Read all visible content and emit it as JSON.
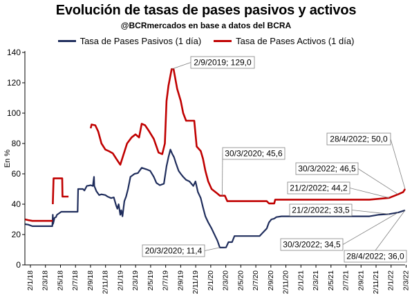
{
  "chart_data": {
    "type": "line",
    "title": "Evolución de tasas de pases pasivos y activos",
    "subtitle": "@BCRmercados en base a datos del BCRA",
    "ylabel": "En %",
    "ylim": [
      0,
      140
    ],
    "yticks": [
      0,
      20,
      40,
      60,
      80,
      100,
      120,
      140
    ],
    "xlim": [
      "2018-01-01",
      "2022-04-28"
    ],
    "xticks": [
      "2/1/18",
      "2/3/18",
      "2/5/18",
      "2/7/18",
      "2/9/18",
      "2/11/18",
      "2/1/19",
      "2/3/19",
      "2/5/19",
      "2/7/19",
      "2/9/19",
      "2/11/19",
      "2/1/20",
      "2/3/20",
      "2/5/20",
      "2/7/20",
      "2/9/20",
      "2/11/20",
      "2/1/21",
      "2/3/21",
      "2/5/21",
      "2/7/21",
      "2/9/21",
      "2/11/21",
      "2/1/22",
      "2/3/22"
    ],
    "grid": false,
    "legend": "top",
    "series": [
      {
        "name": "Tasa de Pases Pasivos (1 día)",
        "color": "#1f2d5c",
        "points": [
          [
            "2018-01-02",
            26.8
          ],
          [
            "2018-01-15",
            26.5
          ],
          [
            "2018-02-01",
            25.5
          ],
          [
            "2018-03-01",
            25.5
          ],
          [
            "2018-04-01",
            25.5
          ],
          [
            "2018-04-25",
            25.5
          ],
          [
            "2018-04-27",
            33.0
          ],
          [
            "2018-04-28",
            27.0
          ],
          [
            "2018-05-04",
            31.0
          ],
          [
            "2018-05-10",
            31.5
          ],
          [
            "2018-05-14",
            33.0
          ],
          [
            "2018-06-01",
            35.0
          ],
          [
            "2018-06-20",
            35.0
          ],
          [
            "2018-07-15",
            35.0
          ],
          [
            "2018-08-08",
            35.0
          ],
          [
            "2018-08-10",
            50.0
          ],
          [
            "2018-08-30",
            50.0
          ],
          [
            "2018-09-05",
            49.0
          ],
          [
            "2018-09-15",
            52.0
          ],
          [
            "2018-10-01",
            52.5
          ],
          [
            "2018-10-10",
            52.0
          ],
          [
            "2018-10-15",
            58.0
          ],
          [
            "2018-10-16",
            52.0
          ],
          [
            "2018-10-25",
            48.5
          ],
          [
            "2018-11-05",
            46.0
          ],
          [
            "2018-11-15",
            46.5
          ],
          [
            "2018-12-01",
            46.0
          ],
          [
            "2018-12-10",
            45.0
          ],
          [
            "2018-12-25",
            44.0
          ],
          [
            "2019-01-05",
            44.5
          ],
          [
            "2019-01-15",
            39.0
          ],
          [
            "2019-01-20",
            37.0
          ],
          [
            "2019-01-25",
            40.0
          ],
          [
            "2019-02-01",
            33.0
          ],
          [
            "2019-02-05",
            36.0
          ],
          [
            "2019-02-10",
            32.0
          ],
          [
            "2019-02-18",
            42.0
          ],
          [
            "2019-02-25",
            45.0
          ],
          [
            "2019-03-05",
            50.0
          ],
          [
            "2019-03-15",
            58.0
          ],
          [
            "2019-04-01",
            60.0
          ],
          [
            "2019-04-15",
            60.5
          ],
          [
            "2019-05-01",
            64.0
          ],
          [
            "2019-05-20",
            63.0
          ],
          [
            "2019-06-05",
            62.0
          ],
          [
            "2019-06-20",
            58.0
          ],
          [
            "2019-07-01",
            54.0
          ],
          [
            "2019-07-15",
            52.5
          ],
          [
            "2019-08-01",
            53.5
          ],
          [
            "2019-08-12",
            65.0
          ],
          [
            "2019-08-20",
            71.0
          ],
          [
            "2019-08-28",
            76.0
          ],
          [
            "2019-09-05",
            73.0
          ],
          [
            "2019-09-12",
            71.0
          ],
          [
            "2019-09-20",
            67.0
          ],
          [
            "2019-10-01",
            62.0
          ],
          [
            "2019-10-10",
            60.0
          ],
          [
            "2019-10-20",
            58.0
          ],
          [
            "2019-11-01",
            56.0
          ],
          [
            "2019-11-15",
            55.0
          ],
          [
            "2019-12-01",
            52.0
          ],
          [
            "2019-12-10",
            55.0
          ],
          [
            "2019-12-20",
            48.0
          ],
          [
            "2020-01-01",
            44.0
          ],
          [
            "2020-01-10",
            38.0
          ],
          [
            "2020-01-20",
            32.0
          ],
          [
            "2020-02-01",
            28.0
          ],
          [
            "2020-02-15",
            24.0
          ],
          [
            "2020-03-01",
            19.0
          ],
          [
            "2020-03-10",
            16.0
          ],
          [
            "2020-03-20",
            11.4
          ],
          [
            "2020-04-05",
            11.4
          ],
          [
            "2020-04-15",
            11.5
          ],
          [
            "2020-04-25",
            15.0
          ],
          [
            "2020-05-10",
            15.0
          ],
          [
            "2020-05-20",
            19.0
          ],
          [
            "2020-07-01",
            19.0
          ],
          [
            "2020-08-01",
            19.0
          ],
          [
            "2020-09-01",
            19.0
          ],
          [
            "2020-10-01",
            24.0
          ],
          [
            "2020-10-10",
            28.0
          ],
          [
            "2020-10-20",
            30.0
          ],
          [
            "2020-11-01",
            30.5
          ],
          [
            "2020-11-10",
            31.5
          ],
          [
            "2020-12-01",
            32.0
          ],
          [
            "2021-03-01",
            32.0
          ],
          [
            "2021-06-01",
            32.0
          ],
          [
            "2021-09-01",
            32.0
          ],
          [
            "2021-12-01",
            32.0
          ],
          [
            "2022-01-06",
            33.0
          ],
          [
            "2022-02-21",
            33.5
          ],
          [
            "2022-03-30",
            34.5
          ],
          [
            "2022-04-28",
            36.0
          ]
        ]
      },
      {
        "name": "Tasa de Pases Activos (1 día)",
        "color": "#c00000",
        "segments": [
          [
            [
              "2018-01-02",
              30.0
            ],
            [
              "2018-01-15",
              29.5
            ],
            [
              "2018-02-01",
              29.0
            ],
            [
              "2018-03-01",
              29.0
            ],
            [
              "2018-04-26",
              29.0
            ]
          ],
          [
            [
              "2018-04-27",
              40.0
            ],
            [
              "2018-04-30",
              57.0
            ],
            [
              "2018-06-05",
              57.0
            ],
            [
              "2018-06-06",
              45.0
            ],
            [
              "2018-07-01",
              45.0
            ]
          ],
          [
            [
              "2018-10-01",
              90.0
            ],
            [
              "2018-10-05",
              92.5
            ],
            [
              "2018-10-20",
              92.0
            ],
            [
              "2018-11-01",
              88.0
            ],
            [
              "2018-11-15",
              80.0
            ],
            [
              "2018-12-01",
              76.0
            ],
            [
              "2018-12-15",
              75.0
            ],
            [
              "2019-01-01",
              73.5
            ],
            [
              "2019-01-15",
              70.0
            ],
            [
              "2019-02-01",
              66.0
            ],
            [
              "2019-02-15",
              73.0
            ],
            [
              "2019-03-01",
              80.0
            ],
            [
              "2019-03-20",
              84.0
            ],
            [
              "2019-04-05",
              86.0
            ],
            [
              "2019-04-20",
              84.0
            ],
            [
              "2019-05-01",
              93.0
            ],
            [
              "2019-05-15",
              92.0
            ],
            [
              "2019-06-01",
              88.0
            ],
            [
              "2019-06-20",
              83.0
            ],
            [
              "2019-07-10",
              74.0
            ],
            [
              "2019-07-25",
              73.0
            ],
            [
              "2019-08-05",
              80.0
            ],
            [
              "2019-08-12",
              108.0
            ],
            [
              "2019-08-20",
              118.0
            ],
            [
              "2019-09-02",
              129.0
            ],
            [
              "2019-09-10",
              129.0
            ],
            [
              "2019-09-25",
              116.0
            ],
            [
              "2019-10-10",
              108.0
            ],
            [
              "2019-10-20",
              100.0
            ],
            [
              "2019-11-01",
              95.0
            ],
            [
              "2019-11-20",
              95.0
            ],
            [
              "2019-12-05",
              95.0
            ],
            [
              "2019-12-15",
              78.0
            ],
            [
              "2020-01-01",
              75.0
            ],
            [
              "2020-01-10",
              70.0
            ],
            [
              "2020-01-20",
              62.0
            ],
            [
              "2020-02-01",
              55.0
            ],
            [
              "2020-02-15",
              50.0
            ],
            [
              "2020-03-10",
              47.0
            ],
            [
              "2020-03-20",
              45.6
            ],
            [
              "2020-04-10",
              45.6
            ],
            [
              "2020-04-20",
              42.0
            ],
            [
              "2020-08-01",
              42.0
            ],
            [
              "2020-10-01",
              42.0
            ],
            [
              "2020-10-10",
              40.5
            ],
            [
              "2020-11-01",
              40.5
            ],
            [
              "2020-11-05",
              43.0
            ],
            [
              "2021-03-01",
              43.0
            ],
            [
              "2021-07-01",
              43.0
            ],
            [
              "2021-12-01",
              43.0
            ],
            [
              "2022-01-06",
              43.5
            ],
            [
              "2022-02-21",
              44.2
            ],
            [
              "2022-03-30",
              46.5
            ],
            [
              "2022-04-20",
              48.0
            ],
            [
              "2022-04-28",
              50.0
            ]
          ]
        ]
      }
    ],
    "annotations": [
      {
        "text": "2/9/2019; 129,0",
        "date": "2019-09-02",
        "value": 129.0
      },
      {
        "text": "30/3/2020; 45,6",
        "date": "2020-03-30",
        "value": 45.6
      },
      {
        "text": "20/3/2020; 11,4",
        "date": "2020-03-20",
        "value": 11.4
      },
      {
        "text": "28/4/2022; 50,0",
        "date": "2022-04-28",
        "value": 50.0
      },
      {
        "text": "30/3/2022; 46,5",
        "date": "2022-03-30",
        "value": 46.5
      },
      {
        "text": "21/2/2022; 44,2",
        "date": "2022-02-21",
        "value": 44.2
      },
      {
        "text": "21/2/2022; 33,5",
        "date": "2022-02-21",
        "value": 33.5
      },
      {
        "text": "30/3/2022; 34,5",
        "date": "2022-03-30",
        "value": 34.5
      },
      {
        "text": "28/4/2022; 36,0",
        "date": "2022-04-28",
        "value": 36.0
      }
    ]
  }
}
